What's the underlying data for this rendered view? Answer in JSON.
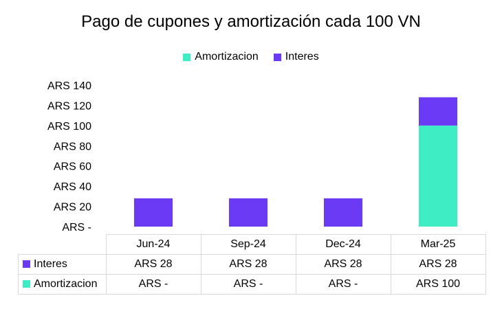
{
  "chart_data": {
    "type": "bar",
    "stacked": true,
    "title": "Pago de cupones y amortización cada 100 VN",
    "categories": [
      "Jun-24",
      "Sep-24",
      "Dec-24",
      "Mar-25"
    ],
    "series": [
      {
        "name": "Amortizacion",
        "color": "#3EEDC3",
        "values": [
          0,
          0,
          0,
          100
        ],
        "labels": [
          "ARS -",
          "ARS -",
          "ARS -",
          "ARS 100"
        ]
      },
      {
        "name": "Interes",
        "color": "#6A3AF4",
        "values": [
          28,
          28,
          28,
          28
        ],
        "labels": [
          "ARS 28",
          "ARS 28",
          "ARS 28",
          "ARS 28"
        ]
      }
    ],
    "y_ticks": [
      "ARS -",
      "ARS 20",
      "ARS 40",
      "ARS 60",
      "ARS 80",
      "ARS 100",
      "ARS 120",
      "ARS 140"
    ],
    "ylim": [
      0,
      140
    ],
    "legend_position": "top",
    "data_table": true,
    "grid": false
  }
}
